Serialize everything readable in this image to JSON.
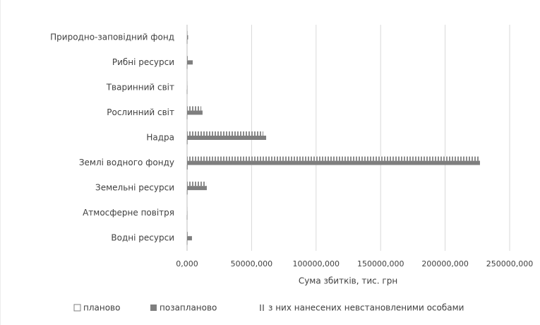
{
  "chart_data": {
    "type": "hbar",
    "categories": [
      "Водні ресурси",
      "Атмосферне повітря",
      "Земельні ресурси",
      "Землі водного фонду",
      "Надра",
      "Рослинний світ",
      "Тваринний світ",
      "Рибні ресурси",
      "Природно-заповідний фонд"
    ],
    "series": [
      {
        "name": "планово",
        "color": "#ffffff",
        "values": [
          100,
          50,
          200,
          300,
          200,
          100,
          50,
          100,
          100
        ]
      },
      {
        "name": "позапланово",
        "color": "#7f7f7f",
        "values": [
          3800,
          200,
          15300,
          227000,
          61300,
          12000,
          200,
          4400,
          800
        ]
      },
      {
        "name": "з них нанесених невстановленими особами",
        "color": "#8c8c8c",
        "pattern": "stripes",
        "values": [
          500,
          100,
          14800,
          226000,
          59100,
          11000,
          100,
          1000,
          300
        ]
      }
    ],
    "xlabel": "Сума збитків, тис. грн",
    "xlim": [
      0,
      250000
    ],
    "xticks": [
      {
        "value": 0,
        "label": "0,000"
      },
      {
        "value": 50000,
        "label": "50000,000"
      },
      {
        "value": 100000,
        "label": "100000,000"
      },
      {
        "value": 150000,
        "label": "150000,000"
      },
      {
        "value": 200000,
        "label": "200000,000"
      },
      {
        "value": 250000,
        "label": "250000,000"
      }
    ],
    "grid": true,
    "legend": "bottom"
  }
}
